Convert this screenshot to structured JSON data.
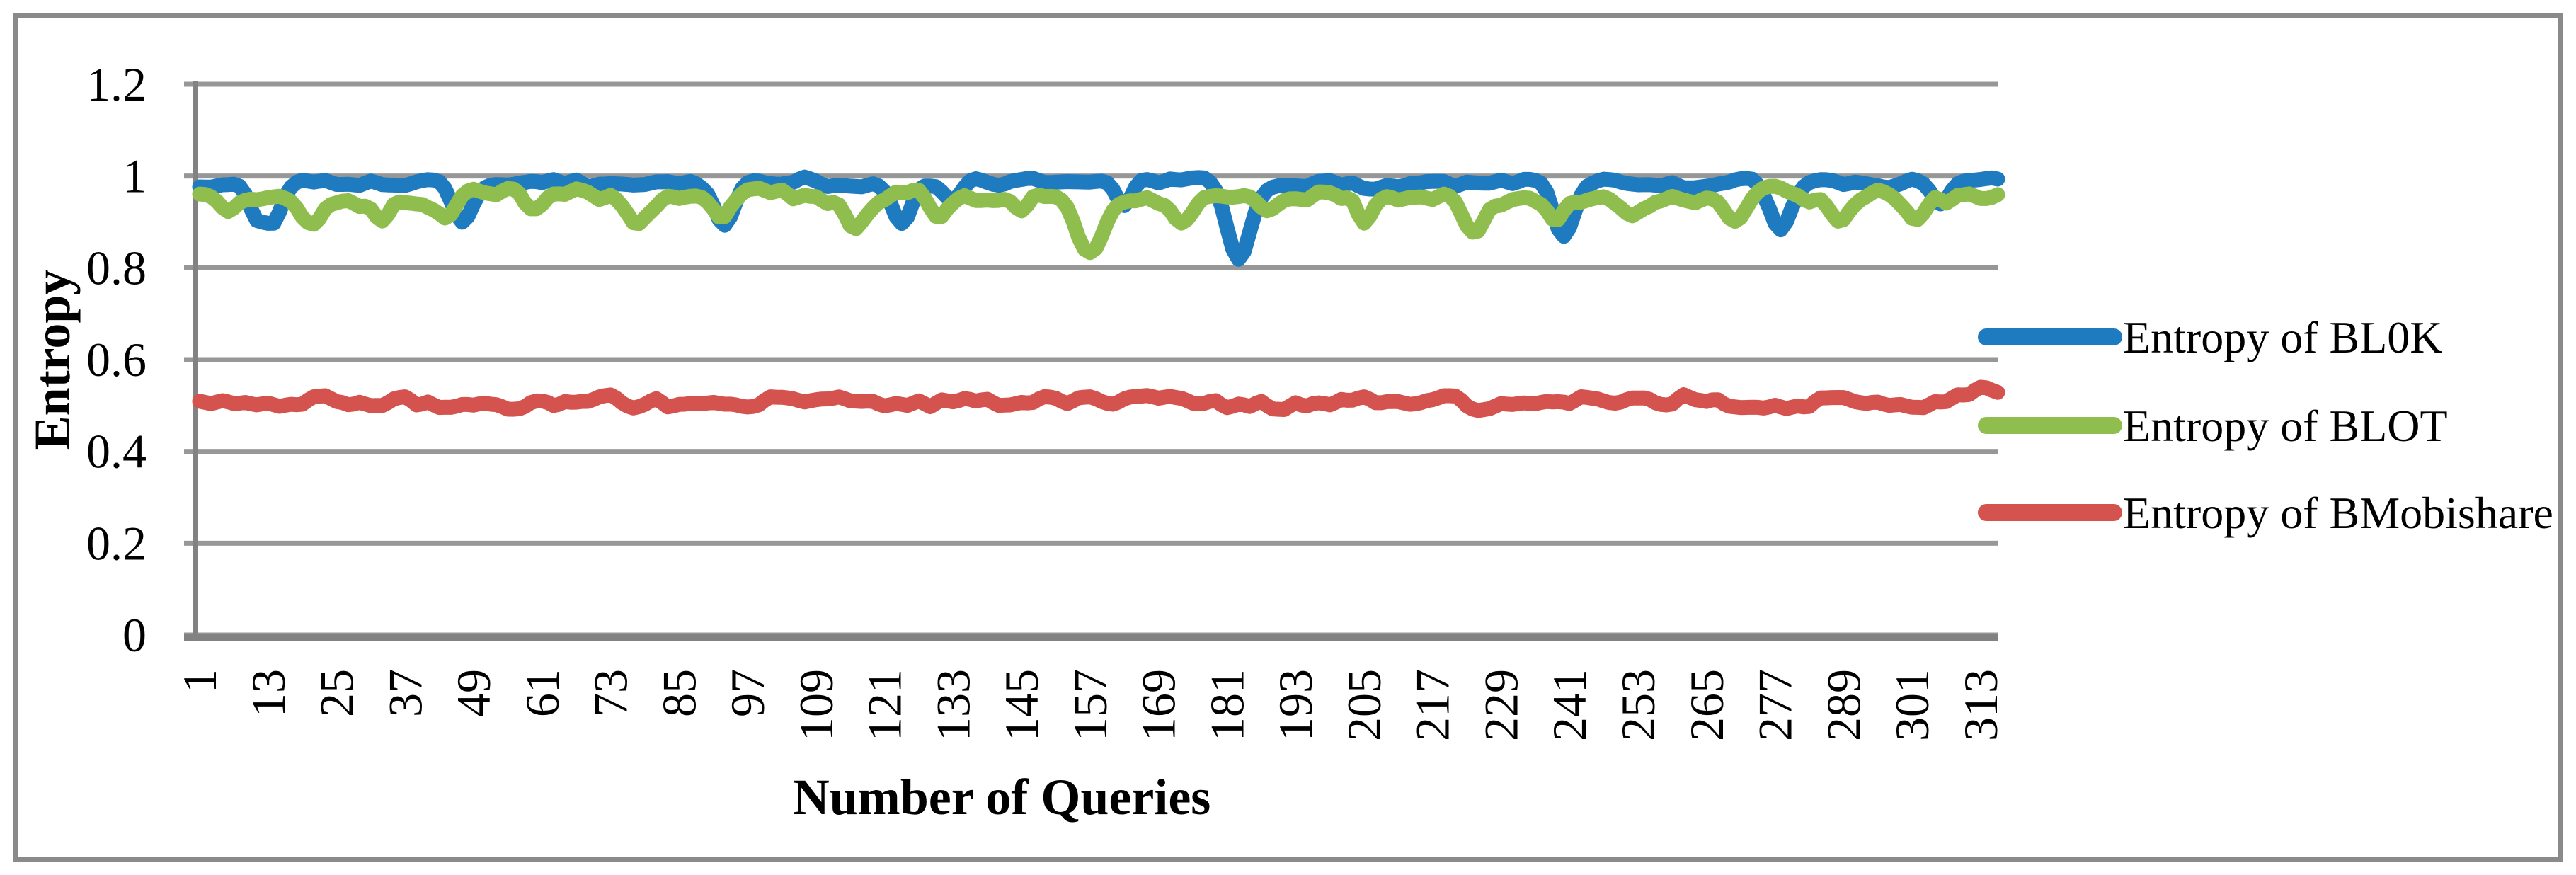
{
  "figure": {
    "background": "#FFFFFF",
    "border_color": "#8A8A8A"
  },
  "chart_data": {
    "type": "line",
    "title": "",
    "xlabel": "Number of Queries",
    "ylabel": "Entropy",
    "ylim": [
      0,
      1.2
    ],
    "x_range_queries": [
      1,
      316
    ],
    "n_points": 316,
    "grid": "horizontal",
    "grid_color": "#979797",
    "axis_color": "#828282",
    "text_color": "#000000",
    "line_width": 21,
    "y_ticks": [
      {
        "value": 0,
        "label": "0"
      },
      {
        "value": 0.2,
        "label": "0.2"
      },
      {
        "value": 0.4,
        "label": "0.4"
      },
      {
        "value": 0.6,
        "label": "0.6"
      },
      {
        "value": 0.8,
        "label": "0.8"
      },
      {
        "value": 1,
        "label": "1"
      },
      {
        "value": 1.2,
        "label": "1.2"
      }
    ],
    "x_tick_labels": [
      "1",
      "13",
      "25",
      "37",
      "49",
      "61",
      "73",
      "85",
      "97",
      "109",
      "121",
      "133",
      "145",
      "157",
      "169",
      "181",
      "193",
      "205",
      "217",
      "229",
      "241",
      "253",
      "265",
      "277",
      "289",
      "301",
      "313"
    ],
    "legend": {
      "position": "right-middle",
      "items": [
        "Entropy of BL0K",
        "Entropy of BLOT",
        "Entropy of BMobishare"
      ]
    },
    "series": [
      {
        "name": "Entropy of BL0K",
        "color": "#1F7BBF",
        "approx_level": 0.99,
        "observed_range": [
          0.82,
          1.0
        ],
        "baseline": 0.986,
        "clamp_min": 0.6,
        "clamp_max": 0.998,
        "seed": 7,
        "octaves": [
          {
            "amplitude": 0.009,
            "step": 5
          },
          {
            "amplitude": 0.006,
            "step": 2
          }
        ],
        "dips": [
          [
            11,
            0.08,
            1.4
          ],
          [
            14,
            0.085,
            1.4
          ],
          [
            47,
            0.085,
            1.7
          ],
          [
            93,
            0.09,
            1.7
          ],
          [
            124,
            0.08,
            1.6
          ],
          [
            133,
            0.045,
            1.4
          ],
          [
            163,
            0.06,
            1.4
          ],
          [
            183,
            0.165,
            2.0
          ],
          [
            240,
            0.12,
            1.8
          ],
          [
            278,
            0.1,
            1.7
          ],
          [
            306,
            0.05,
            1.5
          ]
        ]
      },
      {
        "name": "Entropy of BLOT",
        "color": "#8FBE4F",
        "approx_level": 0.96,
        "observed_range": [
          0.84,
          0.99
        ],
        "baseline": 0.96,
        "clamp_min": 0.6,
        "clamp_max": 0.995,
        "seed": 13,
        "octaves": [
          {
            "amplitude": 0.016,
            "step": 6
          },
          {
            "amplitude": 0.011,
            "step": 2
          }
        ],
        "dips": [
          [
            6,
            0.04,
            1.5
          ],
          [
            21,
            0.05,
            1.8
          ],
          [
            33,
            0.04,
            1.5
          ],
          [
            44,
            0.055,
            1.8
          ],
          [
            59,
            0.045,
            1.5
          ],
          [
            78,
            0.05,
            1.8
          ],
          [
            92,
            0.045,
            1.5
          ],
          [
            116,
            0.075,
            1.8
          ],
          [
            130,
            0.045,
            1.5
          ],
          [
            145,
            0.04,
            1.5
          ],
          [
            157,
            0.115,
            2.2
          ],
          [
            173,
            0.045,
            1.5
          ],
          [
            188,
            0.05,
            1.8
          ],
          [
            205,
            0.045,
            1.5
          ],
          [
            224,
            0.08,
            2.0
          ],
          [
            238,
            0.045,
            1.5
          ],
          [
            252,
            0.05,
            1.8
          ],
          [
            270,
            0.055,
            1.8
          ],
          [
            288,
            0.045,
            1.5
          ],
          [
            302,
            0.04,
            1.5
          ]
        ]
      },
      {
        "name": "Entropy of BMobishare",
        "color": "#D5534E",
        "approx_level": 0.51,
        "observed_range": [
          0.48,
          0.54
        ],
        "baseline": 0.507,
        "clamp_min": 0.45,
        "clamp_max": 0.56,
        "seed": 21,
        "octaves": [
          {
            "amplitude": 0.011,
            "step": 4
          },
          {
            "amplitude": 0.009,
            "step": 2
          }
        ],
        "dips": [
          [
            314,
            -0.026,
            4
          ]
        ]
      }
    ]
  }
}
